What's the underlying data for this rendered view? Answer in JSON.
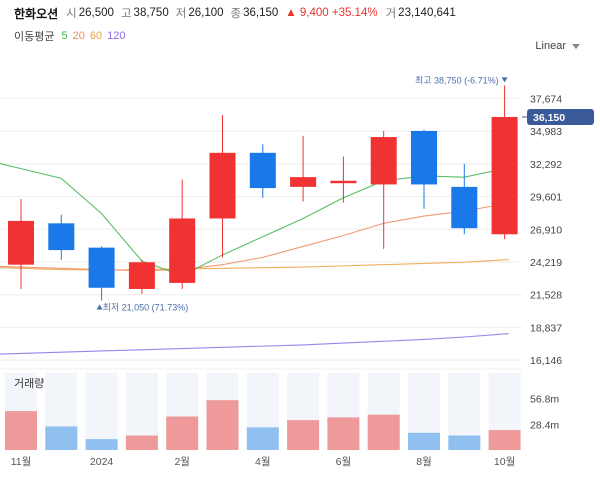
{
  "header": {
    "name": "한화오션",
    "open_label": "시",
    "open": "26,500",
    "high_label": "고",
    "high": "38,750",
    "low_label": "저",
    "low": "26,100",
    "close_label": "종",
    "close": "36,150",
    "change": "▲ 9,400 +35.14%",
    "volume_label": "거",
    "volume": "23,140,641"
  },
  "ma_legend": {
    "title": "이동평균",
    "items": [
      {
        "label": "5",
        "color": "#3cb44b"
      },
      {
        "label": "20",
        "color": "#f08a5d"
      },
      {
        "label": "60",
        "color": "#f0a040"
      },
      {
        "label": "120",
        "color": "#8a6de9"
      }
    ]
  },
  "scale_select": {
    "value": "Linear"
  },
  "colors": {
    "up": "#f03232",
    "down": "#1a78e8",
    "vol_up": "#ef9a9a",
    "vol_down": "#90c0f0"
  },
  "chart_data": {
    "type": "candlestick",
    "title": "한화오션",
    "x_labels": [
      {
        "index": 0,
        "label": "11월"
      },
      {
        "index": 2,
        "label": "2024"
      },
      {
        "index": 4,
        "label": "2월"
      },
      {
        "index": 6,
        "label": "4월"
      },
      {
        "index": 8,
        "label": "6월"
      },
      {
        "index": 10,
        "label": "8월"
      },
      {
        "index": 12,
        "label": "10월"
      }
    ],
    "y_ticks": [
      "37,674",
      "34,983",
      "32,292",
      "29,601",
      "26,910",
      "24,219",
      "21,528",
      "18,837",
      "16,146"
    ],
    "y_tick_values": [
      37674,
      34983,
      32292,
      29601,
      26910,
      24219,
      21528,
      18837,
      16146
    ],
    "ylim": [
      15500,
      41000
    ],
    "candles": [
      {
        "open": 24000,
        "high": 29400,
        "low": 22000,
        "close": 27600
      },
      {
        "open": 27400,
        "high": 28100,
        "low": 24400,
        "close": 25200
      },
      {
        "open": 25400,
        "high": 25500,
        "low": 21050,
        "close": 22100
      },
      {
        "open": 22000,
        "high": 24400,
        "low": 21600,
        "close": 24200
      },
      {
        "open": 22500,
        "high": 31000,
        "low": 22000,
        "close": 27800
      },
      {
        "open": 27800,
        "high": 36300,
        "low": 24600,
        "close": 33200
      },
      {
        "open": 33200,
        "high": 33900,
        "low": 29500,
        "close": 30300
      },
      {
        "open": 30400,
        "high": 34600,
        "low": 29200,
        "close": 31200
      },
      {
        "open": 30700,
        "high": 32900,
        "low": 29100,
        "close": 30900
      },
      {
        "open": 30600,
        "high": 35000,
        "low": 25300,
        "close": 34500
      },
      {
        "open": 35000,
        "high": 35100,
        "low": 28600,
        "close": 30600
      },
      {
        "open": 30400,
        "high": 32300,
        "low": 26500,
        "close": 27000
      },
      {
        "open": 26500,
        "high": 38750,
        "low": 26100,
        "close": 36150
      }
    ],
    "ma5": [
      31900,
      31100,
      28200,
      24300,
      23100,
      24800,
      26300,
      27800,
      29500,
      30900,
      31300,
      31200,
      31900
    ],
    "ma20": [
      23800,
      23700,
      23600,
      23500,
      23600,
      24000,
      24600,
      25500,
      26400,
      27400,
      28000,
      28400,
      29000
    ],
    "ma60": [
      23700,
      23600,
      23550,
      23600,
      23650,
      23700,
      23750,
      23800,
      23900,
      24000,
      24100,
      24200,
      24400
    ],
    "ma120": [
      16700,
      16800,
      16900,
      17000,
      17100,
      17200,
      17300,
      17400,
      17550,
      17700,
      17850,
      18050,
      18300
    ],
    "current_price": "36,150",
    "current_value": 36150,
    "max_annotation": "최고 38,750 (-6.71%)",
    "min_annotation": "최저 21,050 (71.73%)",
    "volume": {
      "title": "거래량",
      "ticks": [
        "56.8m",
        "28.4m"
      ],
      "tick_values": [
        56800000,
        28400000
      ],
      "max": 85000000,
      "values": [
        43000000,
        26000000,
        12000000,
        16000000,
        37000000,
        55000000,
        25000000,
        33000000,
        36000000,
        39000000,
        19000000,
        16000000,
        22000000
      ]
    }
  }
}
